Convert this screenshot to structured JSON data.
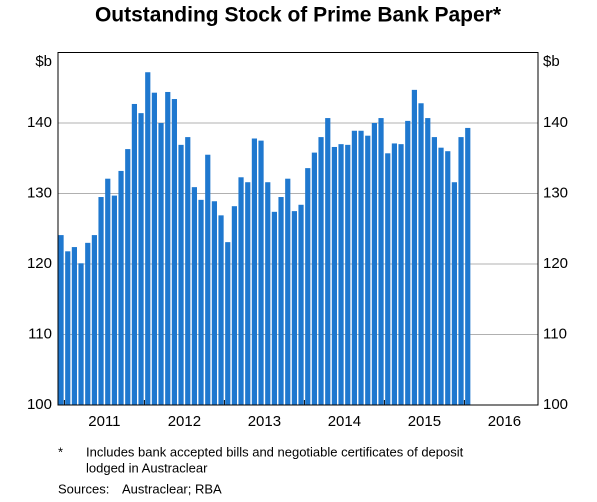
{
  "chart_data": {
    "type": "bar",
    "title": "Outstanding Stock of Prime Bank Paper*",
    "y_unit": "$b",
    "y2_unit": "$b",
    "footnote_marker": "*",
    "footnote": [
      "Includes bank accepted bills and negotiable certificates of deposit",
      "lodged in Austraclear"
    ],
    "sources_label": "Sources:",
    "sources": "Austraclear; RBA",
    "color": "#1f78cf",
    "x": [
      2010.958,
      2011.042,
      2011.125,
      2011.208,
      2011.292,
      2011.375,
      2011.458,
      2011.542,
      2011.625,
      2011.708,
      2011.792,
      2011.875,
      2011.958,
      2012.042,
      2012.125,
      2012.208,
      2012.292,
      2012.375,
      2012.458,
      2012.542,
      2012.625,
      2012.708,
      2012.792,
      2012.875,
      2012.958,
      2013.042,
      2013.125,
      2013.208,
      2013.292,
      2013.375,
      2013.458,
      2013.542,
      2013.625,
      2013.708,
      2013.792,
      2013.875,
      2013.958,
      2014.042,
      2014.125,
      2014.208,
      2014.292,
      2014.375,
      2014.458,
      2014.542,
      2014.625,
      2014.708,
      2014.792,
      2014.875,
      2014.958,
      2015.042,
      2015.125,
      2015.208,
      2015.292,
      2015.375,
      2015.458,
      2015.542,
      2015.625,
      2015.708,
      2015.792,
      2015.875,
      2015.958,
      2016.042
    ],
    "values": [
      124.1,
      121.8,
      122.4,
      120.1,
      123.0,
      124.1,
      129.5,
      132.1,
      129.7,
      133.2,
      136.3,
      142.7,
      141.4,
      147.2,
      144.3,
      140.0,
      144.4,
      143.4,
      136.9,
      138.0,
      130.9,
      129.1,
      135.5,
      128.9,
      126.9,
      123.1,
      128.2,
      132.3,
      131.6,
      137.8,
      137.5,
      131.6,
      127.4,
      129.5,
      132.1,
      127.5,
      128.4,
      133.6,
      135.8,
      138.0,
      140.7,
      136.6,
      137.0,
      136.9,
      138.9,
      138.9,
      138.2,
      140.0,
      140.7,
      135.7,
      137.1,
      137.0,
      140.3,
      144.7,
      142.8,
      140.7,
      138.0,
      136.5,
      136.0,
      131.6,
      138.0,
      139.3
    ],
    "xlim": [
      2010.92,
      2016.92
    ],
    "xticks": [
      {
        "value": 2011,
        "label": "2011"
      },
      {
        "value": 2012,
        "label": "2012"
      },
      {
        "value": 2013,
        "label": "2013"
      },
      {
        "value": 2014,
        "label": "2014"
      },
      {
        "value": 2015,
        "label": "2015"
      },
      {
        "value": 2016,
        "label": "2016"
      }
    ],
    "ylim": [
      100,
      150
    ],
    "yticks": [
      100,
      110,
      120,
      130,
      140
    ],
    "y2lim": [
      100,
      150
    ],
    "y2ticks": [
      100,
      110,
      120,
      130,
      140
    ],
    "grid": true
  }
}
